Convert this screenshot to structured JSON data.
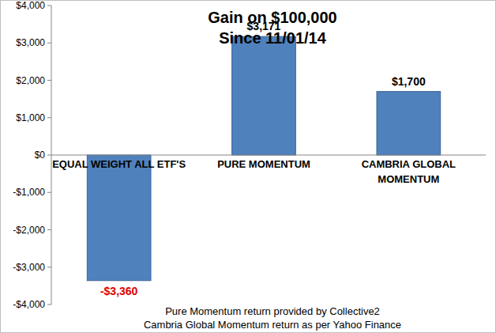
{
  "chart_data": {
    "type": "bar",
    "title": "Gain on $100,000",
    "subtitle": "Since 11/01/14",
    "categories": [
      "EQUAL WEIGHT ALL ETF'S",
      "PURE MOMENTUM",
      "CAMBRIA GLOBAL MOMENTUM"
    ],
    "values": [
      -3360,
      3171,
      1700
    ],
    "value_labels": [
      "-$3,360",
      "$3,171",
      "$1,700"
    ],
    "data_labels": true,
    "color": "#4f81bd",
    "ylim": [
      -4000,
      4000
    ],
    "yticks": [
      {
        "value": -4000,
        "label": "-$4,000"
      },
      {
        "value": -3000,
        "label": "-$3,000"
      },
      {
        "value": -2000,
        "label": "-$2,000"
      },
      {
        "value": -1000,
        "label": "-$1,000"
      },
      {
        "value": 0,
        "label": "$0"
      },
      {
        "value": 1000,
        "label": "$1,000"
      },
      {
        "value": 2000,
        "label": "$2,000"
      },
      {
        "value": 3000,
        "label": "$3,000"
      },
      {
        "value": 4000,
        "label": "$4,000"
      }
    ],
    "grid": false,
    "annotations": [
      "Pure Momentum return provided by Collective2",
      "Cambria Global Momentum return as per Yahoo Finance"
    ]
  }
}
